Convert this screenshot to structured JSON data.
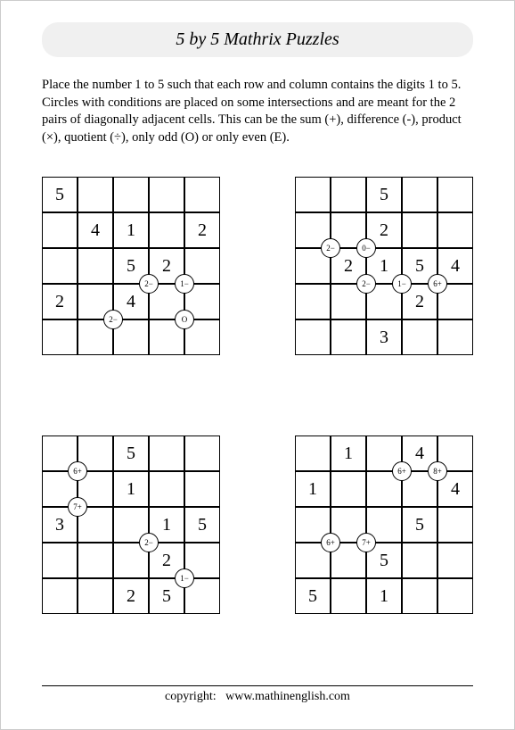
{
  "header": {
    "title": "5 by 5 Mathrix Puzzles"
  },
  "instructions": {
    "text": "Place the number 1 to 5 such that each row and column contains the digits 1 to 5. Circles with conditions are placed on some intersections and are meant for the 2 pairs of diagonally adjacent cells. This can be the sum (+), difference (-), product (×), quotient (÷), only odd (O) or only even (E)."
  },
  "footer": {
    "label": "copyright:",
    "site": "www.mathinenglish.com"
  },
  "grids": [
    {
      "cells": {
        "0,0": "5",
        "1,1": "4",
        "1,2": "1",
        "1,4": "2",
        "2,2": "5",
        "2,3": "2",
        "3,0": "2",
        "3,2": "4"
      },
      "circles": [
        {
          "r": 3,
          "c": 3,
          "label": "2−"
        },
        {
          "r": 3,
          "c": 4,
          "label": "1−"
        },
        {
          "r": 4,
          "c": 2,
          "label": "2−"
        },
        {
          "r": 4,
          "c": 4,
          "label": "O"
        }
      ]
    },
    {
      "cells": {
        "0,2": "5",
        "1,2": "2",
        "2,1": "2",
        "2,2": "1",
        "2,3": "5",
        "2,4": "4",
        "3,3": "2",
        "4,2": "3"
      },
      "circles": [
        {
          "r": 2,
          "c": 1,
          "label": "2−"
        },
        {
          "r": 2,
          "c": 2,
          "label": "0−"
        },
        {
          "r": 3,
          "c": 2,
          "label": "2−"
        },
        {
          "r": 3,
          "c": 3,
          "label": "1−"
        },
        {
          "r": 3,
          "c": 4,
          "label": "6+"
        }
      ]
    },
    {
      "cells": {
        "0,2": "5",
        "1,2": "1",
        "2,0": "3",
        "2,3": "1",
        "2,4": "5",
        "3,3": "2",
        "4,2": "2",
        "4,3": "5"
      },
      "circles": [
        {
          "r": 1,
          "c": 1,
          "label": "6+"
        },
        {
          "r": 2,
          "c": 1,
          "label": "7+"
        },
        {
          "r": 3,
          "c": 3,
          "label": "2−"
        },
        {
          "r": 4,
          "c": 4,
          "label": "1−"
        }
      ]
    },
    {
      "cells": {
        "0,1": "1",
        "0,3": "4",
        "1,0": "1",
        "1,4": "4",
        "2,3": "5",
        "3,2": "5",
        "4,0": "5",
        "4,2": "1"
      },
      "circles": [
        {
          "r": 1,
          "c": 3,
          "label": "6+"
        },
        {
          "r": 1,
          "c": 4,
          "label": "8+"
        },
        {
          "r": 3,
          "c": 1,
          "label": "6+"
        },
        {
          "r": 3,
          "c": 2,
          "label": "7+"
        }
      ]
    }
  ]
}
